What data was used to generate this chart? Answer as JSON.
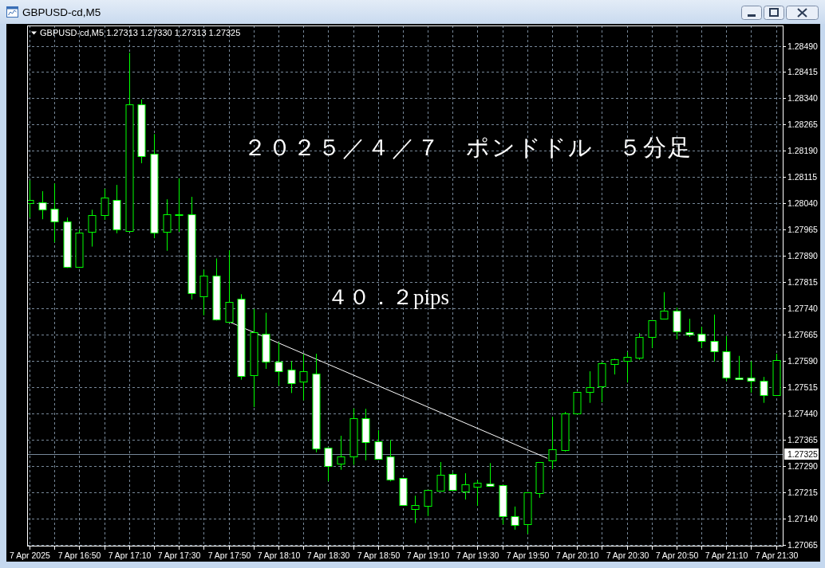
{
  "chart_data": {
    "type": "candlestick",
    "title": "２０２５／４／７　ポンドドル　５分足",
    "annotations": [
      "GBPUSD-cd,M5",
      "GBPUSD-cd,M5 1.27313 1.27330 1.27313 1.27325",
      "４０．２pips"
    ],
    "x": [
      "2025-04-07T16:30",
      "2025-04-07T16:35",
      "2025-04-07T16:40",
      "2025-04-07T16:45",
      "2025-04-07T16:50",
      "2025-04-07T16:55",
      "2025-04-07T17:00",
      "2025-04-07T17:05",
      "2025-04-07T17:10",
      "2025-04-07T17:15",
      "2025-04-07T17:20",
      "2025-04-07T17:25",
      "2025-04-07T17:30",
      "2025-04-07T17:35",
      "2025-04-07T17:40",
      "2025-04-07T17:45",
      "2025-04-07T17:50",
      "2025-04-07T17:55",
      "2025-04-07T18:00",
      "2025-04-07T18:05",
      "2025-04-07T18:10",
      "2025-04-07T18:15",
      "2025-04-07T18:20",
      "2025-04-07T18:25",
      "2025-04-07T18:30",
      "2025-04-07T18:35",
      "2025-04-07T18:40",
      "2025-04-07T18:45",
      "2025-04-07T18:50",
      "2025-04-07T18:55",
      "2025-04-07T19:00",
      "2025-04-07T19:05",
      "2025-04-07T19:10",
      "2025-04-07T19:15",
      "2025-04-07T19:20",
      "2025-04-07T19:25",
      "2025-04-07T19:30",
      "2025-04-07T19:35",
      "2025-04-07T19:40",
      "2025-04-07T19:45",
      "2025-04-07T19:50",
      "2025-04-07T19:55",
      "2025-04-07T20:00",
      "2025-04-07T20:05",
      "2025-04-07T20:10",
      "2025-04-07T20:15",
      "2025-04-07T20:20",
      "2025-04-07T20:25",
      "2025-04-07T20:30",
      "2025-04-07T20:35",
      "2025-04-07T20:40",
      "2025-04-07T20:45",
      "2025-04-07T20:50",
      "2025-04-07T20:55",
      "2025-04-07T21:00",
      "2025-04-07T21:05",
      "2025-04-07T21:10",
      "2025-04-07T21:15",
      "2025-04-07T21:20",
      "2025-04-07T21:25",
      "2025-04-07T21:30"
    ],
    "ohlc": [
      [
        1.28042,
        1.28106,
        1.28,
        1.2805
      ],
      [
        1.28044,
        1.28075,
        1.27995,
        1.28022
      ],
      [
        1.28024,
        1.28097,
        1.27929,
        1.27988
      ],
      [
        1.27988,
        1.28,
        1.27856,
        1.2786
      ],
      [
        1.27858,
        1.27966,
        1.27856,
        1.27956
      ],
      [
        1.27958,
        1.28022,
        1.27917,
        1.28006
      ],
      [
        1.28006,
        1.28082,
        1.27993,
        1.28056
      ],
      [
        1.28051,
        1.28093,
        1.27955,
        1.27967
      ],
      [
        1.27962,
        1.2847,
        1.2796,
        1.28322
      ],
      [
        1.28322,
        1.28337,
        1.28155,
        1.28175
      ],
      [
        1.28181,
        1.28238,
        1.27941,
        1.27956
      ],
      [
        1.27958,
        1.28052,
        1.27905,
        1.2801
      ],
      [
        1.28008,
        1.28112,
        1.27959,
        1.28008
      ],
      [
        1.2801,
        1.28059,
        1.27766,
        1.27783
      ],
      [
        1.27774,
        1.27851,
        1.27721,
        1.27834
      ],
      [
        1.27834,
        1.27883,
        1.27706,
        1.27708
      ],
      [
        1.27703,
        1.27906,
        1.27703,
        1.27758
      ],
      [
        1.27767,
        1.27781,
        1.27537,
        1.27547
      ],
      [
        1.27549,
        1.27739,
        1.27459,
        1.27672
      ],
      [
        1.27667,
        1.27728,
        1.27568,
        1.27588
      ],
      [
        1.27589,
        1.27644,
        1.2752,
        1.27561
      ],
      [
        1.27566,
        1.2759,
        1.27499,
        1.27528
      ],
      [
        1.27531,
        1.2761,
        1.27478,
        1.27562
      ],
      [
        1.27555,
        1.27611,
        1.2733,
        1.2734
      ],
      [
        1.27344,
        1.27344,
        1.27247,
        1.27291
      ],
      [
        1.27297,
        1.27377,
        1.2728,
        1.27319
      ],
      [
        1.27317,
        1.27455,
        1.27294,
        1.27426
      ],
      [
        1.27428,
        1.27454,
        1.27307,
        1.27358
      ],
      [
        1.2736,
        1.27393,
        1.2731,
        1.27312
      ],
      [
        1.27319,
        1.27365,
        1.27247,
        1.27251
      ],
      [
        1.27256,
        1.27256,
        1.27178,
        1.2718
      ],
      [
        1.27169,
        1.27206,
        1.27128,
        1.27179
      ],
      [
        1.27178,
        1.27222,
        1.27148,
        1.27222
      ],
      [
        1.27221,
        1.27302,
        1.27219,
        1.27265
      ],
      [
        1.27269,
        1.27272,
        1.2722,
        1.27222
      ],
      [
        1.27219,
        1.2727,
        1.27195,
        1.27238
      ],
      [
        1.27231,
        1.2725,
        1.27177,
        1.27242
      ],
      [
        1.27241,
        1.27299,
        1.27233,
        1.27233
      ],
      [
        1.27237,
        1.27237,
        1.27124,
        1.27147
      ],
      [
        1.27147,
        1.27175,
        1.27109,
        1.27122
      ],
      [
        1.27124,
        1.27215,
        1.27097,
        1.27215
      ],
      [
        1.27213,
        1.27301,
        1.272,
        1.27301
      ],
      [
        1.27306,
        1.27431,
        1.27282,
        1.27338
      ],
      [
        1.27335,
        1.27445,
        1.27332,
        1.2744
      ],
      [
        1.2744,
        1.27503,
        1.2744,
        1.27503
      ],
      [
        1.27503,
        1.27561,
        1.27471,
        1.27515
      ],
      [
        1.27518,
        1.27588,
        1.27473,
        1.27584
      ],
      [
        1.27581,
        1.27597,
        1.27552,
        1.27595
      ],
      [
        1.27591,
        1.27616,
        1.27529,
        1.27603
      ],
      [
        1.276,
        1.2767,
        1.27594,
        1.2766
      ],
      [
        1.27658,
        1.27706,
        1.27628,
        1.27706
      ],
      [
        1.27712,
        1.27787,
        1.27712,
        1.27733
      ],
      [
        1.27733,
        1.27743,
        1.27652,
        1.27674
      ],
      [
        1.27672,
        1.27711,
        1.27659,
        1.27665
      ],
      [
        1.27669,
        1.27688,
        1.27628,
        1.27647
      ],
      [
        1.27647,
        1.27723,
        1.27589,
        1.27619
      ],
      [
        1.27617,
        1.27662,
        1.27533,
        1.27542
      ],
      [
        1.27542,
        1.27605,
        1.27537,
        1.27539
      ],
      [
        1.27542,
        1.2759,
        1.275,
        1.27533
      ],
      [
        1.27534,
        1.27545,
        1.27471,
        1.27494
      ],
      [
        1.27493,
        1.27611,
        1.27493,
        1.27592
      ]
    ],
    "color": "#00ff00",
    "colors": [
      "#000000",
      "#ffffff",
      "#ffffff",
      "#ffffff",
      "#000000",
      "#000000",
      "#000000",
      "#ffffff",
      "#000000",
      "#ffffff",
      "#ffffff",
      "#000000",
      "#000000",
      "#ffffff",
      "#000000",
      "#ffffff",
      "#000000",
      "#ffffff",
      "#000000",
      "#ffffff",
      "#ffffff",
      "#ffffff",
      "#000000",
      "#ffffff",
      "#ffffff",
      "#000000",
      "#000000",
      "#ffffff",
      "#ffffff",
      "#ffffff",
      "#ffffff",
      "#000000",
      "#000000",
      "#000000",
      "#ffffff",
      "#000000",
      "#000000",
      "#ffffff",
      "#ffffff",
      "#ffffff",
      "#000000",
      "#000000",
      "#000000",
      "#000000",
      "#000000",
      "#000000",
      "#000000",
      "#000000",
      "#000000",
      "#000000",
      "#000000",
      "#000000",
      "#ffffff",
      "#ffffff",
      "#ffffff",
      "#ffffff",
      "#ffffff",
      "#ffffff",
      "#ffffff",
      "#ffffff",
      "#000000"
    ],
    "series": [
      {
        "type": "line",
        "color": "#ffffff",
        "x": [
          "2025-04-07T17:50",
          "2025-04-07T19:58"
        ],
        "values": [
          1.27703,
          1.27313
        ]
      }
    ],
    "xlim": [
      "2025-04-07T16:29",
      "2025-04-07T21:33"
    ],
    "xticks": [
      {
        "value": "2025-04-07T16:30",
        "label": "7 Apr 2025"
      },
      {
        "value": "2025-04-07T16:40",
        "label": null
      },
      {
        "value": "2025-04-07T16:50",
        "label": "7 Apr 16:50"
      },
      {
        "value": "2025-04-07T17:00",
        "label": null
      },
      {
        "value": "2025-04-07T17:10",
        "label": "7 Apr 17:10"
      },
      {
        "value": "2025-04-07T17:20",
        "label": null
      },
      {
        "value": "2025-04-07T17:30",
        "label": "7 Apr 17:30"
      },
      {
        "value": "2025-04-07T17:40",
        "label": null
      },
      {
        "value": "2025-04-07T17:50",
        "label": "7 Apr 17:50"
      },
      {
        "value": "2025-04-07T18:00",
        "label": null
      },
      {
        "value": "2025-04-07T18:10",
        "label": "7 Apr 18:10"
      },
      {
        "value": "2025-04-07T18:20",
        "label": null
      },
      {
        "value": "2025-04-07T18:30",
        "label": "7 Apr 18:30"
      },
      {
        "value": "2025-04-07T18:40",
        "label": null
      },
      {
        "value": "2025-04-07T18:50",
        "label": "7 Apr 18:50"
      },
      {
        "value": "2025-04-07T19:00",
        "label": null
      },
      {
        "value": "2025-04-07T19:10",
        "label": "7 Apr 19:10"
      },
      {
        "value": "2025-04-07T19:20",
        "label": null
      },
      {
        "value": "2025-04-07T19:30",
        "label": "7 Apr 19:30"
      },
      {
        "value": "2025-04-07T19:40",
        "label": null
      },
      {
        "value": "2025-04-07T19:50",
        "label": "7 Apr 19:50"
      },
      {
        "value": "2025-04-07T20:00",
        "label": null
      },
      {
        "value": "2025-04-07T20:10",
        "label": "7 Apr 20:10"
      },
      {
        "value": "2025-04-07T20:20",
        "label": null
      },
      {
        "value": "2025-04-07T20:30",
        "label": "7 Apr 20:30"
      },
      {
        "value": "2025-04-07T20:40",
        "label": null
      },
      {
        "value": "2025-04-07T20:50",
        "label": "7 Apr 20:50"
      },
      {
        "value": "2025-04-07T21:00",
        "label": null
      },
      {
        "value": "2025-04-07T21:10",
        "label": "7 Apr 21:10"
      },
      {
        "value": "2025-04-07T21:20",
        "label": null
      },
      {
        "value": "2025-04-07T21:30",
        "label": "7 Apr 21:30"
      }
    ],
    "ylim": [
      1.27061,
      1.28548
    ],
    "yticks": [
      {
        "value": 1.2849,
        "label": "1.28490"
      },
      1.28415,
      {
        "value": 1.2834,
        "label": "1.28340"
      },
      1.28265,
      {
        "value": 1.2819,
        "label": "1.28190"
      },
      1.28115,
      {
        "value": 1.2804,
        "label": "1.28040"
      },
      1.27965,
      {
        "value": 1.2789,
        "label": "1.27890"
      },
      1.27815,
      {
        "value": 1.2774,
        "label": "1.27740"
      },
      1.27665,
      {
        "value": 1.2759,
        "label": "1.27590"
      },
      1.27515,
      {
        "value": 1.2744,
        "label": "1.27440"
      },
      1.27365,
      {
        "value": 1.2729,
        "label": "1.27290"
      },
      1.27215,
      {
        "value": 1.2714,
        "label": "1.27140"
      },
      1.27065
    ],
    "grid": true,
    "ref_lines": [
      {
        "axis": "y",
        "value": 1.27325,
        "label": "1.27325",
        "color": "#778899"
      }
    ]
  }
}
